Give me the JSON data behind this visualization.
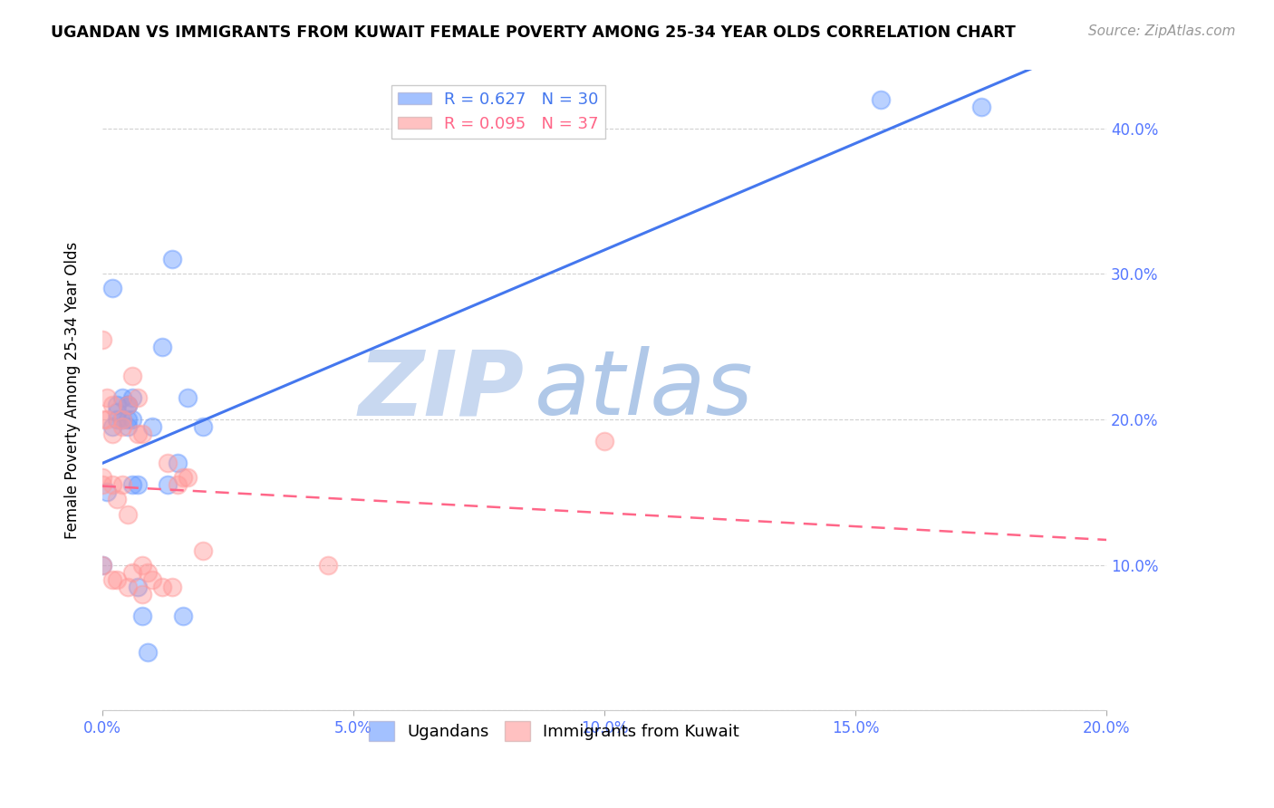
{
  "title": "UGANDAN VS IMMIGRANTS FROM KUWAIT FEMALE POVERTY AMONG 25-34 YEAR OLDS CORRELATION CHART",
  "source": "Source: ZipAtlas.com",
  "ylabel": "Female Poverty Among 25-34 Year Olds",
  "xlim": [
    0.0,
    0.2
  ],
  "ylim": [
    0.0,
    0.44
  ],
  "xticks": [
    0.0,
    0.05,
    0.1,
    0.15,
    0.2
  ],
  "yticks": [
    0.0,
    0.1,
    0.2,
    0.3,
    0.4
  ],
  "xticklabels": [
    "0.0%",
    "5.0%",
    "10.0%",
    "15.0%",
    "20.0%"
  ],
  "blue_color": "#6699FF",
  "pink_color": "#FF9999",
  "blue_line_color": "#4477EE",
  "pink_line_color": "#FF6688",
  "legend_R_blue": "0.627",
  "legend_N_blue": "30",
  "legend_R_pink": "0.095",
  "legend_N_pink": "37",
  "legend_label_blue": "Ugandans",
  "legend_label_pink": "Immigrants from Kuwait",
  "watermark_zip": "ZIP",
  "watermark_atlas": "atlas",
  "ugandan_x": [
    0.0,
    0.001,
    0.002,
    0.002,
    0.003,
    0.003,
    0.003,
    0.004,
    0.004,
    0.005,
    0.005,
    0.005,
    0.005,
    0.006,
    0.006,
    0.006,
    0.007,
    0.007,
    0.008,
    0.009,
    0.01,
    0.012,
    0.013,
    0.014,
    0.015,
    0.016,
    0.017,
    0.02,
    0.155,
    0.175
  ],
  "ugandan_y": [
    0.1,
    0.15,
    0.29,
    0.195,
    0.21,
    0.205,
    0.2,
    0.215,
    0.2,
    0.21,
    0.195,
    0.21,
    0.2,
    0.215,
    0.2,
    0.155,
    0.155,
    0.085,
    0.065,
    0.04,
    0.195,
    0.25,
    0.155,
    0.31,
    0.17,
    0.065,
    0.215,
    0.195,
    0.42,
    0.415
  ],
  "kuwait_x": [
    0.0,
    0.0,
    0.0,
    0.0,
    0.0,
    0.001,
    0.001,
    0.002,
    0.002,
    0.002,
    0.002,
    0.003,
    0.003,
    0.004,
    0.004,
    0.004,
    0.005,
    0.005,
    0.005,
    0.006,
    0.006,
    0.007,
    0.007,
    0.008,
    0.008,
    0.008,
    0.009,
    0.01,
    0.012,
    0.013,
    0.014,
    0.015,
    0.016,
    0.017,
    0.02,
    0.045,
    0.1
  ],
  "kuwait_y": [
    0.255,
    0.2,
    0.16,
    0.155,
    0.1,
    0.215,
    0.2,
    0.21,
    0.19,
    0.155,
    0.09,
    0.145,
    0.09,
    0.2,
    0.195,
    0.155,
    0.21,
    0.135,
    0.085,
    0.23,
    0.095,
    0.215,
    0.19,
    0.19,
    0.1,
    0.08,
    0.095,
    0.09,
    0.085,
    0.17,
    0.085,
    0.155,
    0.16,
    0.16,
    0.11,
    0.1,
    0.185
  ]
}
